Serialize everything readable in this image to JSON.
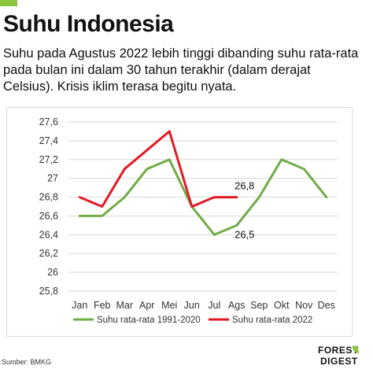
{
  "title": "Suhu Indonesia",
  "subtitle": "Suhu pada Agustus 2022 lebih tinggi dibanding suhu rata-rata\npada bulan ini dalam 30 tahun terakhir (dalam derajat\nCelsius). Krisis iklim terasa begitu nyata.",
  "source": "Sumber: BMKG",
  "logo": {
    "line1": "FOREST",
    "line2": "DIGEST"
  },
  "colors": {
    "accent": "#8cc63f",
    "series_green": "#70ad47",
    "series_red": "#e01b24",
    "grid": "#d9d9d9"
  },
  "chart_data": {
    "type": "line",
    "categories": [
      "Jan",
      "Feb",
      "Mar",
      "Apr",
      "Mei",
      "Jun",
      "Jul",
      "Ags",
      "Sep",
      "Okt",
      "Nov",
      "Des"
    ],
    "series": [
      {
        "name": "Suhu rata-rata 1991-2020",
        "color": "#70ad47",
        "values": [
          26.6,
          26.6,
          26.8,
          27.1,
          27.2,
          26.7,
          26.4,
          26.5,
          26.8,
          27.2,
          27.1,
          26.8
        ]
      },
      {
        "name": "Suhu rata-rata 2022",
        "color": "#e01b24",
        "values": [
          26.8,
          26.7,
          27.1,
          27.3,
          27.5,
          26.7,
          26.8,
          26.8,
          null,
          null,
          null,
          null
        ]
      }
    ],
    "yticks": [
      "25,8",
      "26",
      "26,2",
      "26,4",
      "26,6",
      "26,8",
      "27",
      "27,2",
      "27,4",
      "27,6"
    ],
    "ylim": [
      25.8,
      27.6
    ],
    "grid": true,
    "legend_position": "bottom",
    "annotations": [
      {
        "text": "26,8",
        "category": "Ags",
        "value": 26.8,
        "placement": "above"
      },
      {
        "text": "26,5",
        "category": "Ags",
        "value": 26.5,
        "placement": "below"
      }
    ]
  }
}
